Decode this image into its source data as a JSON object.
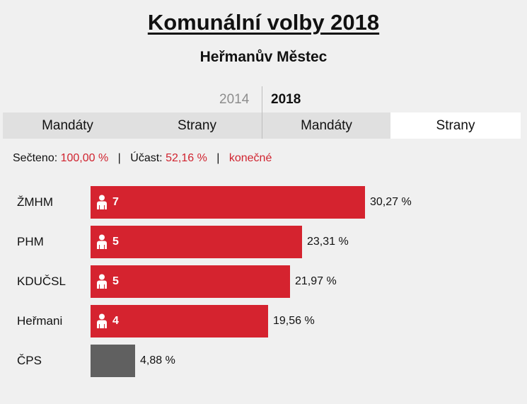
{
  "header": {
    "title": "Komunální volby 2018",
    "subtitle": "Heřmanův Městec"
  },
  "years": {
    "prev": "2014",
    "current": "2018"
  },
  "tabs": [
    {
      "label": "Mandáty",
      "year": "2014"
    },
    {
      "label": "Strany",
      "year": "2014"
    },
    {
      "label": "Mandáty",
      "year": "2018"
    },
    {
      "label": "Strany",
      "year": "2018",
      "active": true
    }
  ],
  "status": {
    "counted_label": "Sečteno:",
    "counted_value": "100,00 %",
    "turnout_label": "Účast:",
    "turnout_value": "52,16 %",
    "final": "konečné",
    "separator": "|"
  },
  "colors": {
    "accent": "#d5232f",
    "no_seat": "#606060",
    "text_red": "#d0232f"
  },
  "chart_data": {
    "type": "bar",
    "orientation": "horizontal",
    "categories": [
      "ŽMHM",
      "PHM",
      "KDUČSL",
      "Heřmani",
      "ČPS"
    ],
    "values": [
      30.27,
      23.31,
      21.97,
      19.56,
      4.88
    ],
    "value_labels": [
      "30,27 %",
      "23,31 %",
      "21,97 %",
      "19,56 %",
      "4,88 %"
    ],
    "seats": [
      7,
      5,
      5,
      4,
      null
    ],
    "seat_icon": "person-icon"
  }
}
